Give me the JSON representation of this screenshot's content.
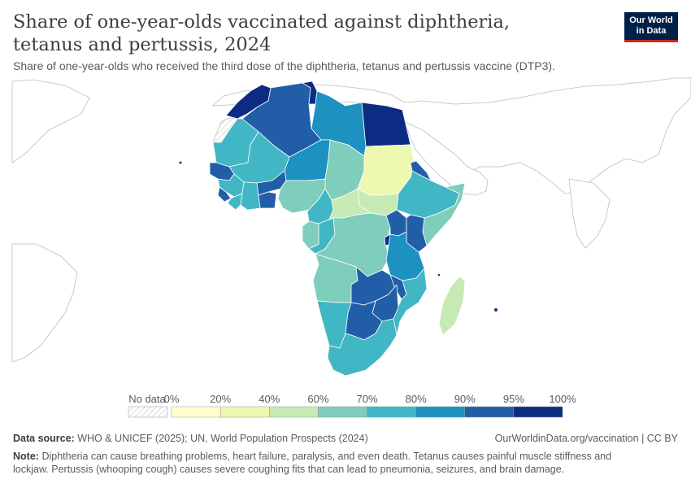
{
  "header": {
    "title": "Share of one-year-olds vaccinated against diphtheria, tetanus and pertussis, 2024",
    "subtitle": "Share of one-year-olds who received the third dose of the diphtheria, tetanus and pertussis vaccine (DTP3).",
    "logo_line1": "Our World",
    "logo_line2": "in Data"
  },
  "legend": {
    "no_data_label": "No data",
    "labels": [
      "0%",
      "20%",
      "40%",
      "60%",
      "70%",
      "80%",
      "90%",
      "95%",
      "100%"
    ],
    "colors": [
      "#ffffcc",
      "#edf8b1",
      "#c7e9b4",
      "#7fcdbb",
      "#41b6c4",
      "#1d91c0",
      "#225ea8",
      "#0c2c84"
    ]
  },
  "map": {
    "region": "Africa",
    "countries": [
      {
        "name": "Morocco",
        "bin": 7
      },
      {
        "name": "Tunisia",
        "bin": 7
      },
      {
        "name": "Algeria",
        "bin": 6
      },
      {
        "name": "Libya",
        "bin": 5
      },
      {
        "name": "Egypt",
        "bin": 7
      },
      {
        "name": "Mauritania",
        "bin": 4
      },
      {
        "name": "Mali",
        "bin": 4
      },
      {
        "name": "Niger",
        "bin": 5
      },
      {
        "name": "Chad",
        "bin": 3
      },
      {
        "name": "Sudan",
        "bin": 1
      },
      {
        "name": "South Sudan",
        "bin": 2
      },
      {
        "name": "Eritrea",
        "bin": 6
      },
      {
        "name": "Ethiopia",
        "bin": 4
      },
      {
        "name": "Somalia",
        "bin": 3
      },
      {
        "name": "Senegal",
        "bin": 6
      },
      {
        "name": "Guinea",
        "bin": 4
      },
      {
        "name": "Sierra Leone",
        "bin": 6
      },
      {
        "name": "Liberia",
        "bin": 4
      },
      {
        "name": "Cote d'Ivoire",
        "bin": 4
      },
      {
        "name": "Burkina Faso",
        "bin": 6
      },
      {
        "name": "Ghana",
        "bin": 6
      },
      {
        "name": "Nigeria",
        "bin": 3
      },
      {
        "name": "Cameroon",
        "bin": 4
      },
      {
        "name": "Central African Republic",
        "bin": 2
      },
      {
        "name": "Gabon",
        "bin": 3
      },
      {
        "name": "Congo",
        "bin": 4
      },
      {
        "name": "DR Congo",
        "bin": 3
      },
      {
        "name": "Uganda",
        "bin": 6
      },
      {
        "name": "Kenya",
        "bin": 6
      },
      {
        "name": "Rwanda",
        "bin": 7
      },
      {
        "name": "Tanzania",
        "bin": 5
      },
      {
        "name": "Angola",
        "bin": 3
      },
      {
        "name": "Zambia",
        "bin": 6
      },
      {
        "name": "Malawi",
        "bin": 6
      },
      {
        "name": "Mozambique",
        "bin": 4
      },
      {
        "name": "Zimbabwe",
        "bin": 6
      },
      {
        "name": "Namibia",
        "bin": 4
      },
      {
        "name": "Botswana",
        "bin": 6
      },
      {
        "name": "South Africa",
        "bin": 4
      },
      {
        "name": "Madagascar",
        "bin": 2
      },
      {
        "name": "Western Sahara",
        "bin": -1
      }
    ]
  },
  "footer": {
    "source_label": "Data source:",
    "source_text": "WHO & UNICEF (2025); UN, World Population Prospects (2024)",
    "url_text": "OurWorldinData.org/vaccination | CC BY",
    "note_label": "Note:",
    "note_text": "Diphtheria can cause breathing problems, heart failure, paralysis, and even death. Tetanus causes painful muscle stiffness and lockjaw. Pertussis (whooping cough) causes severe coughing fits that can lead to pneumonia, seizures, and brain damage."
  }
}
